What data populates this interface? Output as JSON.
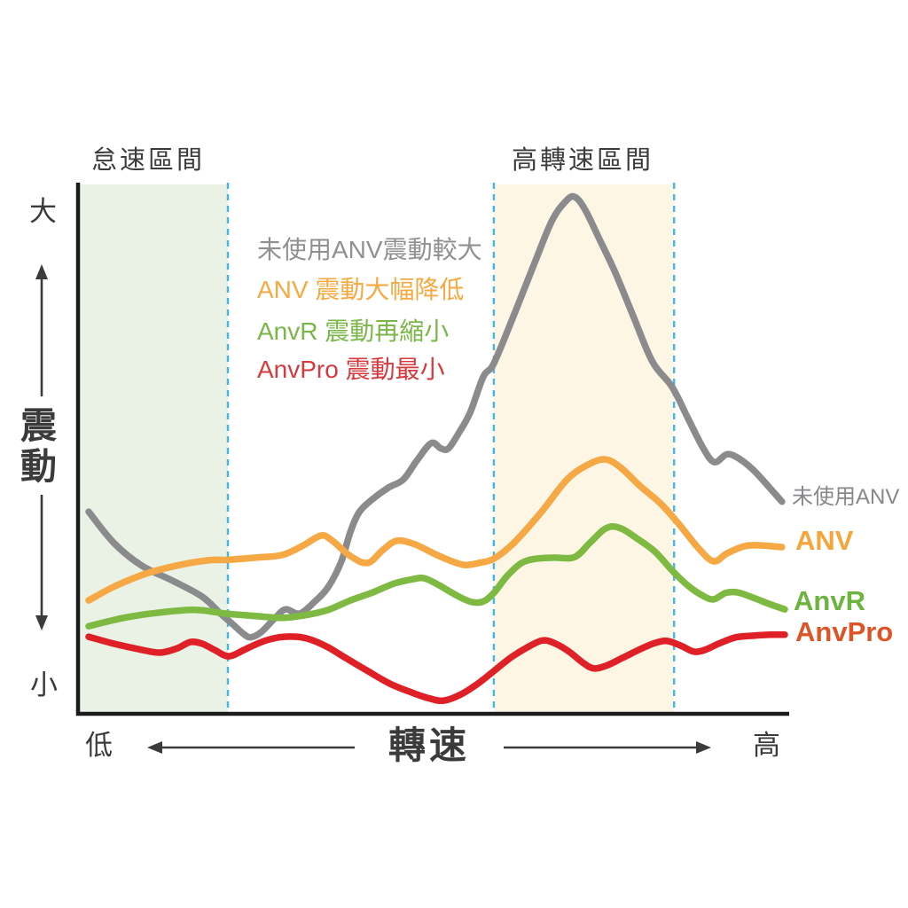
{
  "ui": {
    "region_labels": {
      "idle": "怠速區間",
      "high": "高轉速區間"
    },
    "y_axis": {
      "max": "大",
      "title": "震動",
      "min": "小"
    },
    "x_axis": {
      "min": "低",
      "title": "轉速",
      "max": "高"
    },
    "annotations": [
      {
        "text": "未使用ANV震動較大",
        "color": "#8e9092"
      },
      {
        "text": "ANV 震動大幅降低",
        "color": "#f7a941"
      },
      {
        "text": "AnvR 震動再縮小",
        "color": "#7ab648"
      },
      {
        "text": "AnvPro 震動最小",
        "color": "#d63a3e"
      }
    ],
    "series_end_labels": [
      {
        "text": "未使用ANV",
        "color": "#85878a"
      },
      {
        "text": "ANV",
        "color": "#f6a53c"
      },
      {
        "text": "AnvR",
        "color": "#6db33f"
      },
      {
        "text": "AnvPro",
        "color": "#dd5526"
      }
    ]
  },
  "chart_data": {
    "type": "line",
    "title": "",
    "xlabel": "轉速",
    "ylabel": "震動",
    "x_axis": {
      "min_label": "低",
      "max_label": "高",
      "range": [
        0,
        100
      ],
      "numeric_ticks": false
    },
    "y_axis": {
      "min_label": "小",
      "max_label": "大",
      "range": [
        0,
        100
      ],
      "numeric_ticks": false
    },
    "grid": false,
    "legend_position": "in-plot annotations upper-left, series labels at right curve ends",
    "annotations": [
      "未使用ANV震動較大",
      "ANV 震動大幅降低",
      "AnvR 震動再縮小",
      "AnvPro 震動最小"
    ],
    "regions": [
      {
        "id": "idle",
        "label": "怠速區間",
        "x": [
          -1.5,
          20.0
        ],
        "fill": "#e9f2e5"
      },
      {
        "id": "high-rpm",
        "label": "高轉速區間",
        "x": [
          58.2,
          84.1
        ],
        "fill": "#fdf6e4"
      }
    ],
    "boundary_lines": {
      "x_positions": [
        20.0,
        58.2,
        84.1
      ],
      "color": "#45b6e6",
      "style": "dashed"
    },
    "series": [
      {
        "id": "no-anv",
        "name": "未使用ANV",
        "color": "#8b8b8d",
        "points": [
          [
            0,
            38.3
          ],
          [
            3.6,
            32.4
          ],
          [
            7.6,
            28.1
          ],
          [
            12.1,
            25.2
          ],
          [
            16.3,
            22.2
          ],
          [
            19.1,
            18.8
          ],
          [
            20.6,
            17.1
          ],
          [
            22.3,
            15.1
          ],
          [
            23.3,
            14.5
          ],
          [
            24.8,
            15.5
          ],
          [
            26.8,
            18.2
          ],
          [
            28.3,
            19.8
          ],
          [
            30.3,
            19.0
          ],
          [
            32.5,
            21.3
          ],
          [
            34.4,
            24.0
          ],
          [
            36.3,
            28.9
          ],
          [
            37.6,
            34.5
          ],
          [
            38.9,
            38.3
          ],
          [
            40.8,
            40.7
          ],
          [
            43.1,
            42.9
          ],
          [
            45.2,
            44.4
          ],
          [
            47.1,
            47.9
          ],
          [
            49.2,
            51.3
          ],
          [
            50.6,
            50.3
          ],
          [
            51.7,
            50.3
          ],
          [
            53.2,
            53.3
          ],
          [
            54.8,
            57.1
          ],
          [
            56.7,
            63.9
          ],
          [
            58.2,
            66.4
          ],
          [
            61.1,
            75.6
          ],
          [
            63.9,
            84.9
          ],
          [
            66.5,
            93.3
          ],
          [
            68.5,
            97.1
          ],
          [
            69.8,
            98.0
          ],
          [
            71.3,
            95.6
          ],
          [
            73.4,
            89.9
          ],
          [
            75.7,
            83.5
          ],
          [
            78.2,
            75.5
          ],
          [
            81.0,
            66.7
          ],
          [
            83.8,
            62.0
          ],
          [
            86.1,
            56.0
          ],
          [
            88.3,
            50.3
          ],
          [
            89.9,
            47.7
          ],
          [
            91.7,
            49.2
          ],
          [
            93.4,
            48.4
          ],
          [
            95.5,
            46.2
          ],
          [
            97.8,
            42.9
          ],
          [
            99.6,
            40.2
          ]
        ]
      },
      {
        "id": "anv",
        "name": "ANV",
        "color": "#f5a843",
        "points": [
          [
            0,
            21.5
          ],
          [
            3.8,
            24.2
          ],
          [
            8.3,
            26.6
          ],
          [
            12.7,
            28.1
          ],
          [
            17.2,
            29.1
          ],
          [
            20.1,
            29.2
          ],
          [
            23.9,
            29.6
          ],
          [
            27.8,
            30.1
          ],
          [
            30.8,
            31.9
          ],
          [
            33.4,
            33.8
          ],
          [
            35.0,
            32.8
          ],
          [
            37.6,
            29.9
          ],
          [
            40.1,
            28.6
          ],
          [
            42.3,
            31.1
          ],
          [
            44.3,
            32.8
          ],
          [
            46.9,
            32.1
          ],
          [
            49.7,
            30.3
          ],
          [
            52.2,
            28.9
          ],
          [
            54.1,
            28.2
          ],
          [
            56.1,
            28.6
          ],
          [
            58.2,
            29.4
          ],
          [
            61.1,
            32.4
          ],
          [
            65.0,
            38.2
          ],
          [
            68.8,
            44.5
          ],
          [
            72.0,
            47.4
          ],
          [
            74.3,
            48.2
          ],
          [
            76.4,
            46.7
          ],
          [
            79.2,
            43.2
          ],
          [
            82.2,
            39.8
          ],
          [
            84.7,
            36.1
          ],
          [
            87.6,
            31.4
          ],
          [
            89.8,
            28.9
          ],
          [
            91.7,
            30.4
          ],
          [
            94.3,
            31.8
          ],
          [
            96.8,
            31.9
          ],
          [
            99.6,
            31.6
          ]
        ]
      },
      {
        "id": "anvr",
        "name": "AnvR",
        "color": "#7eba42",
        "points": [
          [
            0,
            16.6
          ],
          [
            5.1,
            18.2
          ],
          [
            10.2,
            19.2
          ],
          [
            15.3,
            19.7
          ],
          [
            19.7,
            19.0
          ],
          [
            24.2,
            18.5
          ],
          [
            28.0,
            18.2
          ],
          [
            31.2,
            18.7
          ],
          [
            34.4,
            19.7
          ],
          [
            37.6,
            21.5
          ],
          [
            40.8,
            23.0
          ],
          [
            43.9,
            24.7
          ],
          [
            46.5,
            25.5
          ],
          [
            48.2,
            25.7
          ],
          [
            50.3,
            24.4
          ],
          [
            52.9,
            22.4
          ],
          [
            55.0,
            21.2
          ],
          [
            56.7,
            21.3
          ],
          [
            58.2,
            22.9
          ],
          [
            60.1,
            26.1
          ],
          [
            62.2,
            28.6
          ],
          [
            64.3,
            29.4
          ],
          [
            66.9,
            29.6
          ],
          [
            69.8,
            29.7
          ],
          [
            72.0,
            32.4
          ],
          [
            73.9,
            34.8
          ],
          [
            75.2,
            35.5
          ],
          [
            76.7,
            35.0
          ],
          [
            78.7,
            33.3
          ],
          [
            81.3,
            30.8
          ],
          [
            83.8,
            27.2
          ],
          [
            86.0,
            24.4
          ],
          [
            88.2,
            22.4
          ],
          [
            89.8,
            21.7
          ],
          [
            91.5,
            22.9
          ],
          [
            93.2,
            23.0
          ],
          [
            95.5,
            22.0
          ],
          [
            97.8,
            20.8
          ],
          [
            100,
            19.8
          ]
        ]
      },
      {
        "id": "anvpro",
        "name": "AnvPro",
        "color": "#df2127",
        "points": [
          [
            0,
            14.6
          ],
          [
            3.6,
            13.3
          ],
          [
            7.0,
            12.3
          ],
          [
            10.2,
            11.6
          ],
          [
            12.7,
            12.4
          ],
          [
            14.6,
            13.6
          ],
          [
            16.3,
            13.3
          ],
          [
            18.1,
            12.1
          ],
          [
            20.1,
            10.9
          ],
          [
            22.3,
            12.1
          ],
          [
            24.8,
            13.6
          ],
          [
            27.4,
            14.5
          ],
          [
            29.9,
            14.6
          ],
          [
            31.8,
            14.1
          ],
          [
            34.4,
            12.6
          ],
          [
            36.9,
            10.6
          ],
          [
            40.1,
            8.1
          ],
          [
            43.3,
            5.7
          ],
          [
            46.5,
            4.0
          ],
          [
            49.0,
            2.9
          ],
          [
            51.0,
            2.5
          ],
          [
            53.5,
            3.7
          ],
          [
            56.1,
            5.9
          ],
          [
            58.2,
            8.1
          ],
          [
            60.8,
            10.8
          ],
          [
            63.3,
            12.8
          ],
          [
            65.2,
            13.9
          ],
          [
            66.9,
            13.4
          ],
          [
            69.0,
            11.8
          ],
          [
            71.1,
            9.6
          ],
          [
            72.6,
            8.6
          ],
          [
            74.5,
            9.2
          ],
          [
            76.7,
            10.6
          ],
          [
            79.0,
            12.1
          ],
          [
            81.3,
            13.4
          ],
          [
            83.1,
            13.8
          ],
          [
            85.1,
            12.9
          ],
          [
            86.9,
            11.8
          ],
          [
            88.5,
            12.1
          ],
          [
            90.7,
            13.4
          ],
          [
            93.0,
            14.5
          ],
          [
            95.5,
            14.8
          ],
          [
            98.1,
            15.0
          ],
          [
            100,
            15.0
          ]
        ]
      }
    ]
  }
}
